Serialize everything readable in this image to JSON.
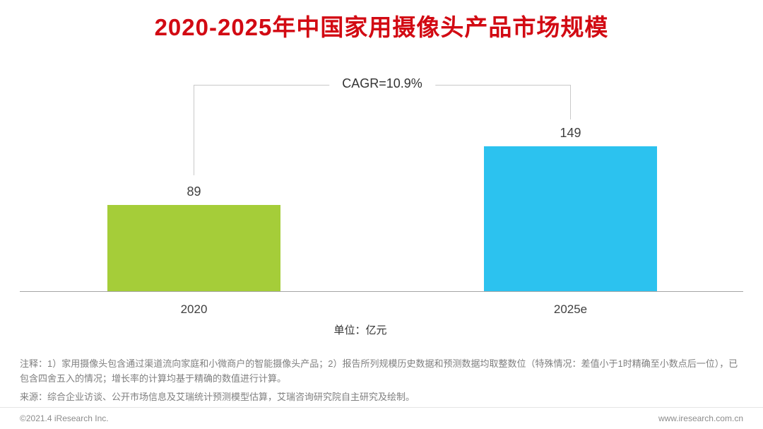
{
  "title": "2020-2025年中国家用摄像头产品市场规模",
  "colors": {
    "title": "#d20a13",
    "bar_2020": "#a5cd39",
    "bar_2025e": "#2cc2ef",
    "axis": "#a6a6a6",
    "bracket": "#c9c9c9"
  },
  "chart_data": {
    "type": "bar",
    "title": "2020-2025年中国家用摄像头产品市场规模",
    "categories": [
      "2020",
      "2025e"
    ],
    "values": [
      89,
      149
    ],
    "bar_colors": [
      "#a5cd39",
      "#2cc2ef"
    ],
    "annotation": "CAGR=10.9%",
    "unit_label": "单位：亿元",
    "xlabel": "",
    "ylabel": "",
    "ylim": [
      0,
      160
    ],
    "grid": false,
    "legend": "none",
    "value_labels": true
  },
  "notes": {
    "annotation": "注释：1）家用摄像头包含通过渠道流向家庭和小微商户的智能摄像头产品；2）报告所列规模历史数据和预测数据均取整数位（特殊情况：差值小于1时精确至小数点后一位），已包含四舍五入的情况；增长率的计算均基于精确的数值进行计算。",
    "source": "来源：综合企业访谈、公开市场信息及艾瑞统计预测模型估算，艾瑞咨询研究院自主研究及绘制。"
  },
  "footer": {
    "copyright": "©2021.4 iResearch Inc.",
    "website": "www.iresearch.com.cn"
  }
}
